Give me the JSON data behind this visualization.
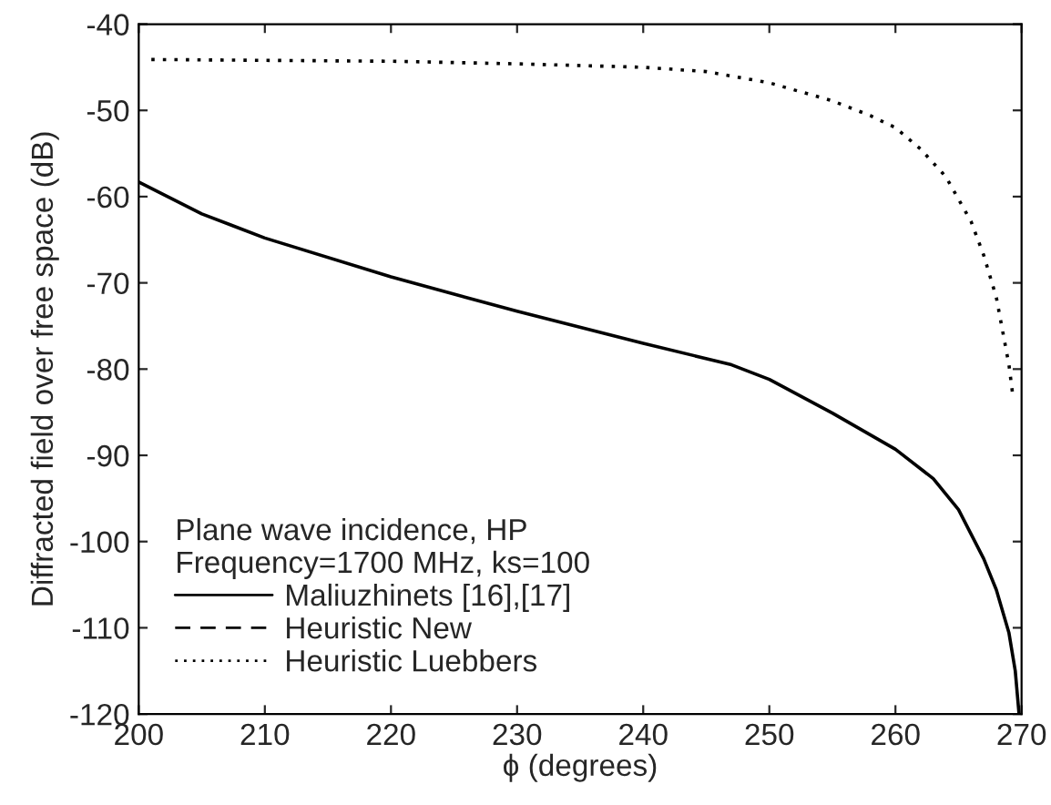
{
  "chart_data": {
    "type": "line",
    "xlabel": "ϕ (degrees)",
    "ylabel": "Diffracted field over free space (dB)",
    "legend_title": "Plane wave incidence, HP\nFrequency=1700 MHz, ks=100",
    "xlim": [
      200,
      270
    ],
    "xticks": [
      200,
      210,
      220,
      230,
      240,
      250,
      260,
      270
    ],
    "ylim": [
      -120,
      -40
    ],
    "yticks": [
      -120,
      -110,
      -100,
      -90,
      -80,
      -70,
      -60,
      -50,
      -40
    ],
    "grid": false,
    "legend": "bottom left",
    "series": [
      {
        "name": "Maliuzhinets [16],[17]",
        "color": "#000000",
        "line_style": "solid",
        "x": [
          200,
          205,
          210,
          220,
          230,
          240,
          247,
          250,
          255,
          260,
          263,
          265,
          267,
          268,
          269,
          269.5,
          269.8
        ],
        "values": [
          -58.3,
          -62,
          -64.8,
          -69.3,
          -73.3,
          -77.0,
          -79.5,
          -81.2,
          -85.1,
          -89.3,
          -92.7,
          -96.3,
          -102,
          -105.6,
          -110.6,
          -115,
          -120
        ]
      },
      {
        "name": "Heuristic New",
        "color": "#000000",
        "line_style": "dashed"
      },
      {
        "name": "Heuristic Luebbers",
        "color": "#000000",
        "line_style": "dotted",
        "x": [
          201,
          210,
          220,
          230,
          240,
          245,
          250,
          255,
          258,
          260,
          262,
          264,
          266,
          267,
          268,
          269,
          269.3
        ],
        "values": [
          -44.1,
          -44.2,
          -44.3,
          -44.6,
          -45.0,
          -45.5,
          -46.8,
          -48.9,
          -50.6,
          -52.0,
          -54.5,
          -57.7,
          -62.9,
          -66.8,
          -71.7,
          -79.5,
          -83
        ]
      }
    ]
  }
}
